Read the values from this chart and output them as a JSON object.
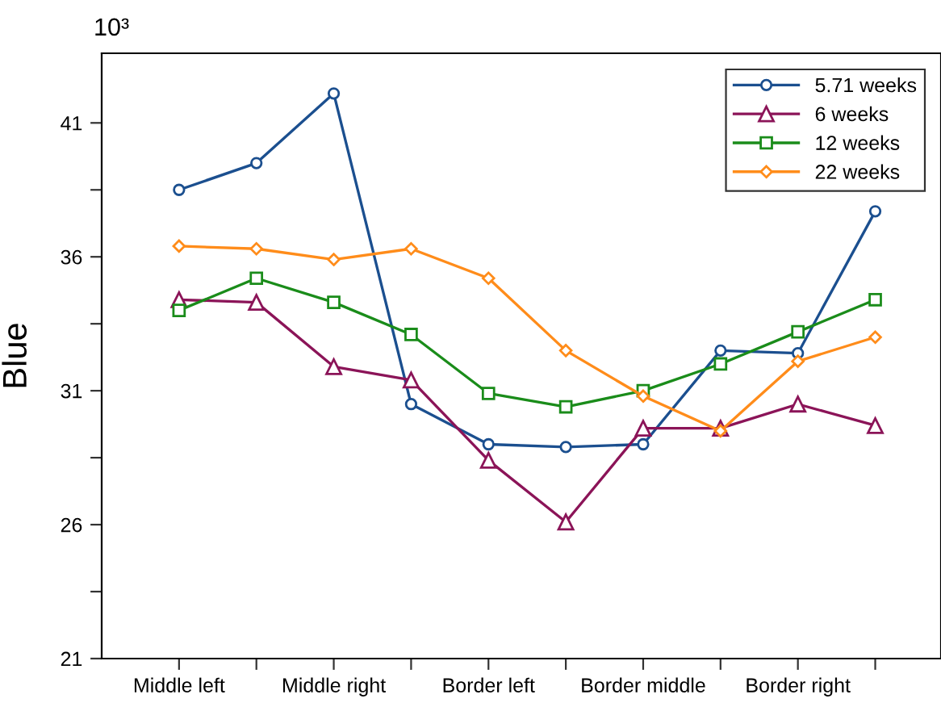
{
  "chart_data": {
    "type": "line",
    "ylabel": "Blue",
    "annotations": [
      "10³"
    ],
    "categories": [
      "Middle left",
      null,
      "Middle right",
      null,
      "Border left",
      null,
      "Border middle",
      null,
      "Border right",
      null
    ],
    "series": [
      {
        "name": "5.71 weeks",
        "color": "#1b4f8f",
        "marker": "circle",
        "values": [
          38.5,
          39.5,
          42.1,
          30.5,
          29.0,
          28.9,
          29.0,
          32.5,
          32.4,
          37.7
        ]
      },
      {
        "name": "6 weeks",
        "color": "#8b1458",
        "marker": "triangle",
        "values": [
          34.4,
          34.3,
          31.9,
          31.4,
          28.4,
          26.1,
          29.6,
          29.6,
          30.5,
          29.7
        ]
      },
      {
        "name": "12 weeks",
        "color": "#1a8c1a",
        "marker": "square",
        "values": [
          34.0,
          35.2,
          34.3,
          33.1,
          30.9,
          30.4,
          31.0,
          32.0,
          33.2,
          34.4
        ]
      },
      {
        "name": "22 weeks",
        "color": "#ff8c1a",
        "marker": "diamond",
        "values": [
          36.4,
          36.3,
          35.9,
          36.3,
          35.2,
          32.5,
          30.8,
          29.5,
          32.1,
          33.0
        ]
      }
    ],
    "ylim": [
      21,
      43.6
    ],
    "yticks": [
      21,
      {
        "value": 23.5,
        "label": null
      },
      26,
      {
        "value": 28.5,
        "label": null
      },
      31,
      {
        "value": 33.5,
        "label": null
      },
      36,
      {
        "value": 38.5,
        "label": null
      },
      41
    ],
    "grid": false,
    "legend": "top right",
    "line_style": "solid"
  }
}
